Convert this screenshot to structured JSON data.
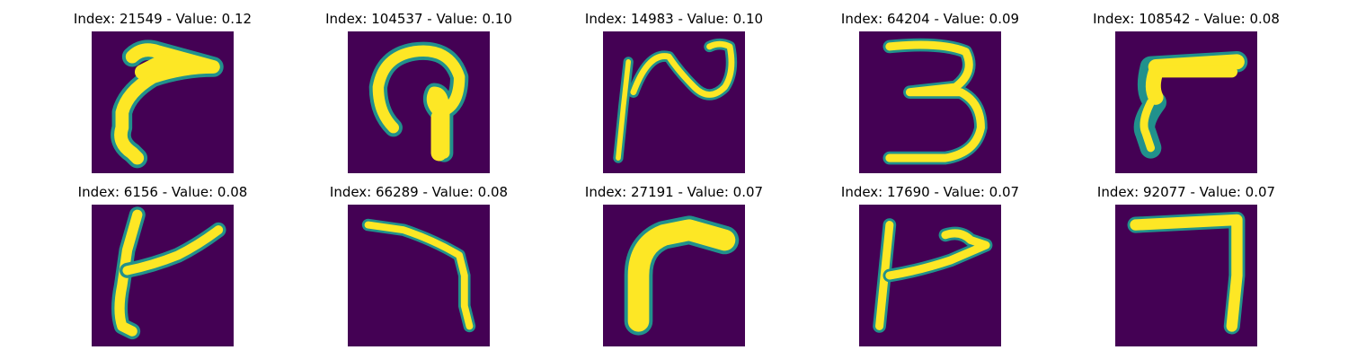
{
  "figure": {
    "colors": {
      "background": "#440154",
      "stroke_edge": "#21918c",
      "stroke_mid": "#5ec962",
      "stroke_core": "#fde725"
    },
    "panels": [
      {
        "title": "Index: 21549 - Value: 0.12",
        "index": 21549,
        "value": 0.12
      },
      {
        "title": "Index: 104537 - Value: 0.10",
        "index": 104537,
        "value": 0.1
      },
      {
        "title": "Index: 14983 - Value: 0.10",
        "index": 14983,
        "value": 0.1
      },
      {
        "title": "Index: 64204 - Value: 0.09",
        "index": 64204,
        "value": 0.09
      },
      {
        "title": "Index: 108542 - Value: 0.08",
        "index": 108542,
        "value": 0.08
      },
      {
        "title": "Index: 6156 - Value: 0.08",
        "index": 6156,
        "value": 0.08
      },
      {
        "title": "Index: 66289 - Value: 0.08",
        "index": 66289,
        "value": 0.08
      },
      {
        "title": "Index: 27191 - Value: 0.07",
        "index": 27191,
        "value": 0.07
      },
      {
        "title": "Index: 17690 - Value: 0.07",
        "index": 17690,
        "value": 0.07
      },
      {
        "title": "Index: 92077 - Value: 0.07",
        "index": 92077,
        "value": 0.07
      }
    ]
  }
}
